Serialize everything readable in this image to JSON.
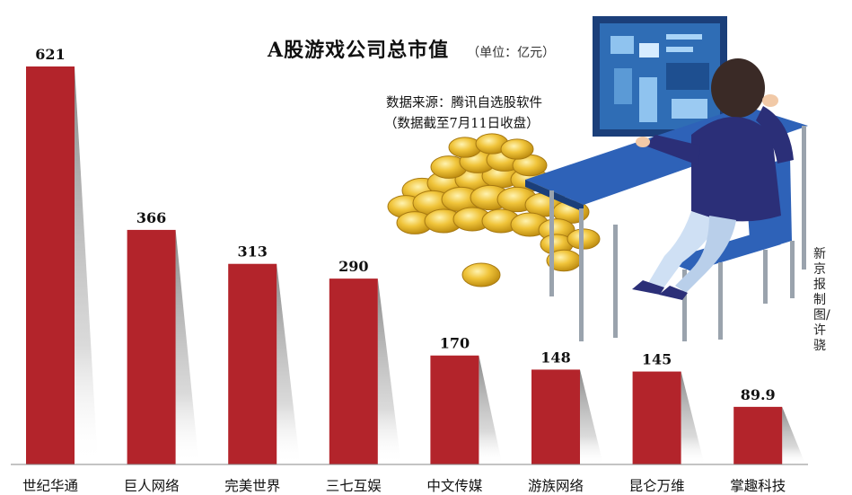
{
  "title": "A股游戏公司总市值",
  "unit": "（单位：亿元）",
  "source": "数据来源：腾讯自选股软件",
  "cutoff_note": "（数据截至7月11日收盘）",
  "credit": "新京报制图/许骁",
  "colors": {
    "bar": "#b3242b",
    "shadow_dark": "#6e6e6e",
    "baseline": "#888888"
  },
  "illustration": {
    "icons": [
      "gold-coins-icon",
      "computer-user-icon"
    ]
  },
  "chart_data": {
    "type": "bar",
    "categories": [
      "世纪华通",
      "巨人网络",
      "完美世界",
      "三七互娱",
      "中文传媒",
      "游族网络",
      "昆仑万维",
      "掌趣科技"
    ],
    "values": [
      621,
      366,
      313,
      290,
      170,
      148,
      145,
      89.9
    ],
    "value_labels": [
      "621",
      "366",
      "313",
      "290",
      "170",
      "148",
      "145",
      "89.9"
    ],
    "title": "A股游戏公司总市值",
    "unit": "亿元",
    "xlabel": "",
    "ylabel": "",
    "ylim": [
      0,
      621
    ],
    "grid": false,
    "legend": "none"
  }
}
